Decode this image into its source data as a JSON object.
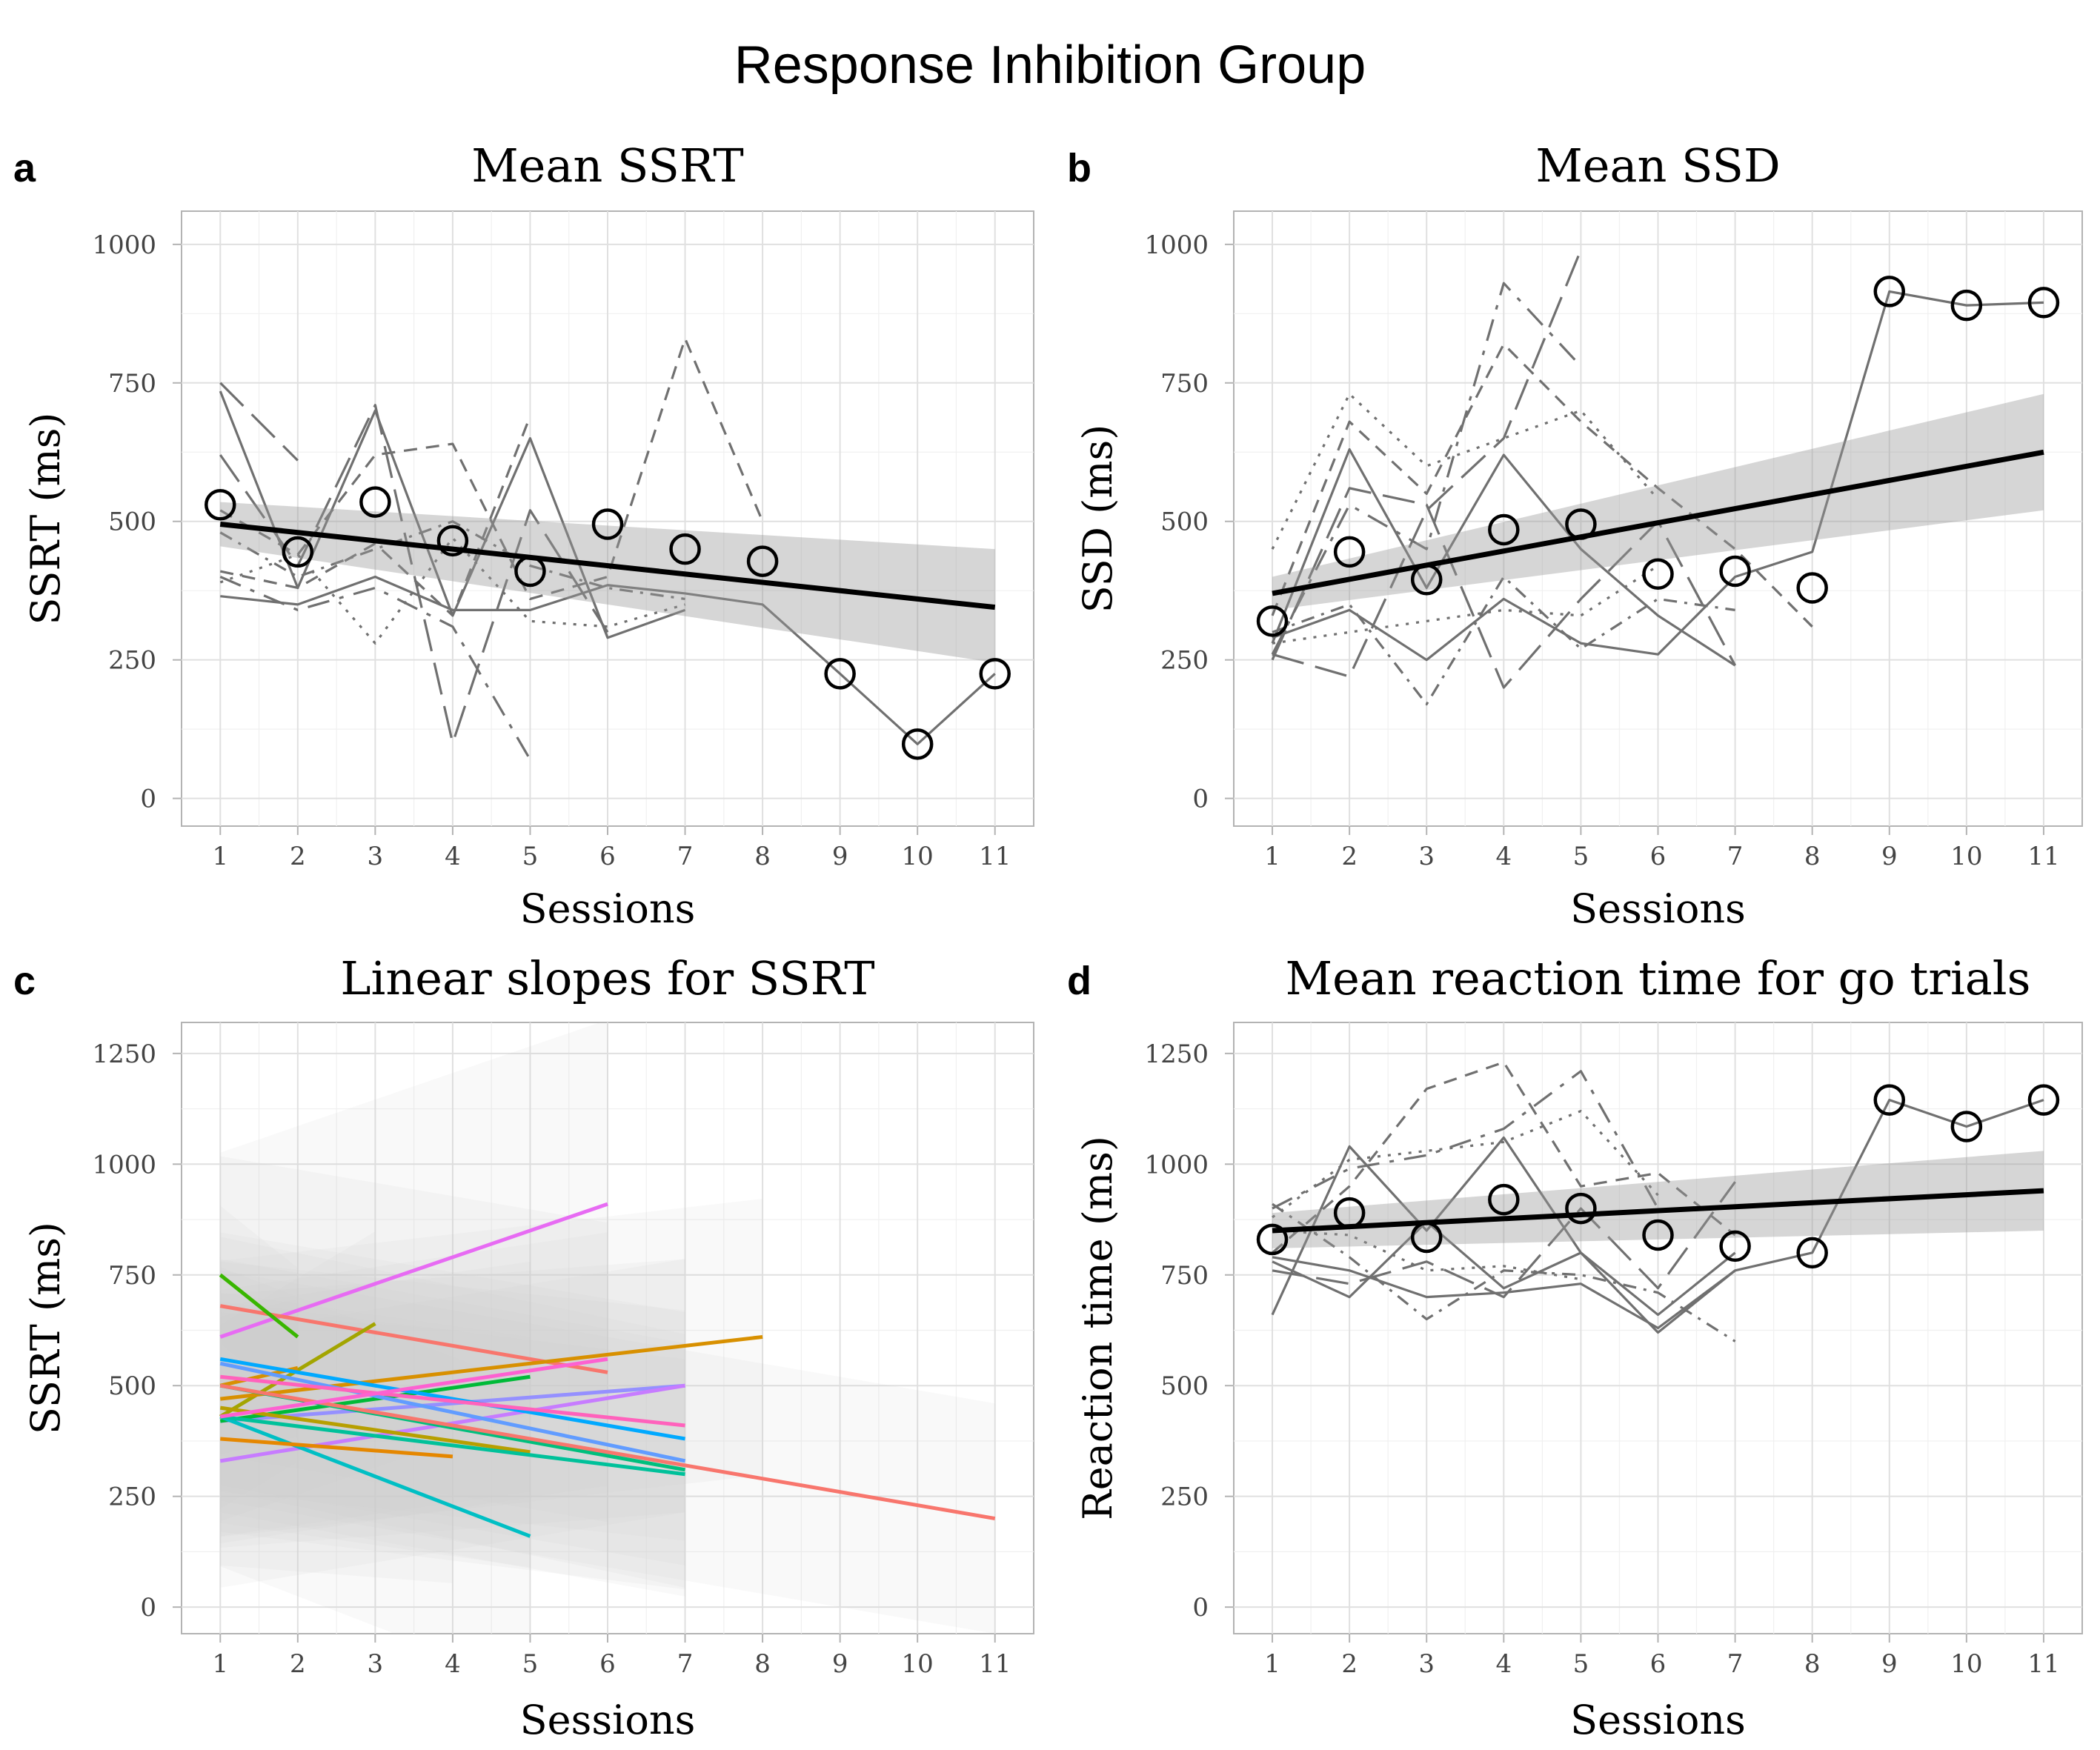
{
  "title": "Response Inhibition Group",
  "chart_data": [
    {
      "id": "a",
      "type": "line",
      "title": "Mean SSRT",
      "xlabel": "Sessions",
      "ylabel": "SSRT (ms)",
      "xlim": [
        0.5,
        11.5
      ],
      "ylim": [
        -50,
        1060
      ],
      "xticks": [
        1,
        2,
        3,
        4,
        5,
        6,
        7,
        8,
        9,
        10,
        11
      ],
      "yticks": [
        0,
        250,
        500,
        750,
        1000
      ],
      "mean_points": {
        "x": [
          1,
          2,
          3,
          4,
          5,
          6,
          7,
          8,
          9,
          10,
          11
        ],
        "y": [
          530,
          445,
          535,
          465,
          410,
          495,
          450,
          428,
          225,
          98,
          225
        ]
      },
      "fit": {
        "x": [
          1,
          11
        ],
        "y": [
          495,
          345
        ],
        "ci_lower": [
          455,
          245
        ],
        "ci_upper": [
          535,
          450
        ]
      },
      "participants": [
        {
          "x": [
            1,
            2
          ],
          "y": [
            750,
            610
          ],
          "dash": "long"
        },
        {
          "x": [
            1,
            2,
            3,
            4,
            5,
            6,
            7
          ],
          "y": [
            735,
            380,
            700,
            330,
            650,
            290,
            340
          ],
          "dash": "solid"
        },
        {
          "x": [
            1,
            2,
            3,
            4,
            5,
            6
          ],
          "y": [
            620,
            420,
            710,
            100,
            520,
            300
          ],
          "dash": "long"
        },
        {
          "x": [
            1,
            2,
            3,
            4,
            5
          ],
          "y": [
            400,
            340,
            380,
            310,
            70
          ],
          "dash": "longdash"
        },
        {
          "x": [
            1,
            2,
            3,
            4,
            5,
            6,
            7,
            8
          ],
          "y": [
            520,
            440,
            620,
            640,
            360,
            400,
            830,
            500
          ],
          "dash": "dashed"
        },
        {
          "x": [
            1,
            2,
            3,
            4,
            5,
            6,
            7
          ],
          "y": [
            390,
            440,
            280,
            470,
            320,
            310,
            350
          ],
          "dash": "dotted"
        },
        {
          "x": [
            1,
            2,
            3,
            4,
            5,
            6,
            7,
            8,
            9,
            10,
            11
          ],
          "y": [
            365,
            350,
            400,
            340,
            340,
            385,
            370,
            350,
            225,
            98,
            225
          ],
          "dash": "solid"
        },
        {
          "x": [
            1,
            2,
            3,
            4,
            5
          ],
          "y": [
            410,
            380,
            460,
            330,
            690
          ],
          "dash": "dashed"
        },
        {
          "x": [
            1,
            2,
            3,
            4,
            5,
            6,
            7
          ],
          "y": [
            480,
            400,
            450,
            500,
            420,
            380,
            360
          ],
          "dash": "dashdot"
        }
      ]
    },
    {
      "id": "b",
      "type": "line",
      "title": "Mean SSD",
      "xlabel": "Sessions",
      "ylabel": "SSD (ms)",
      "xlim": [
        0.5,
        11.5
      ],
      "ylim": [
        -50,
        1060
      ],
      "xticks": [
        1,
        2,
        3,
        4,
        5,
        6,
        7,
        8,
        9,
        10,
        11
      ],
      "yticks": [
        0,
        250,
        500,
        750,
        1000
      ],
      "mean_points": {
        "x": [
          1,
          2,
          3,
          4,
          5,
          6,
          7,
          8,
          9,
          10,
          11
        ],
        "y": [
          320,
          445,
          395,
          485,
          495,
          405,
          410,
          380,
          915,
          890,
          895
        ]
      },
      "fit": {
        "x": [
          1,
          11
        ],
        "y": [
          370,
          625
        ],
        "ci_lower": [
          340,
          520
        ],
        "ci_upper": [
          400,
          730
        ]
      },
      "participants": [
        {
          "x": [
            1,
            2,
            3,
            4,
            5
          ],
          "y": [
            260,
            530,
            450,
            930,
            780
          ],
          "dash": "longdash"
        },
        {
          "x": [
            1,
            2,
            3,
            4,
            5
          ],
          "y": [
            260,
            220,
            520,
            650,
            990
          ],
          "dash": "long"
        },
        {
          "x": [
            1,
            2,
            3,
            4,
            5,
            6,
            7
          ],
          "y": [
            280,
            630,
            380,
            620,
            450,
            330,
            240
          ],
          "dash": "solid"
        },
        {
          "x": [
            1,
            2,
            3,
            4,
            5,
            6
          ],
          "y": [
            450,
            730,
            600,
            650,
            700,
            540
          ],
          "dash": "dotted"
        },
        {
          "x": [
            1,
            2,
            3,
            4,
            5,
            6,
            7,
            8
          ],
          "y": [
            330,
            680,
            550,
            820,
            680,
            560,
            450,
            310
          ],
          "dash": "dashed"
        },
        {
          "x": [
            1,
            2,
            3,
            4,
            5,
            6,
            7
          ],
          "y": [
            300,
            350,
            170,
            400,
            270,
            360,
            340
          ],
          "dash": "dashdot"
        },
        {
          "x": [
            1,
            2,
            3,
            4,
            5,
            6,
            7,
            8,
            9,
            10,
            11
          ],
          "y": [
            290,
            340,
            250,
            360,
            280,
            260,
            400,
            445,
            915,
            890,
            895
          ],
          "dash": "solid"
        },
        {
          "x": [
            1,
            2,
            3,
            4,
            5,
            6,
            7
          ],
          "y": [
            250,
            560,
            530,
            200,
            360,
            500,
            240
          ],
          "dash": "long"
        },
        {
          "x": [
            1,
            2,
            3,
            4,
            5,
            6
          ],
          "y": [
            280,
            300,
            320,
            340,
            330,
            420
          ],
          "dash": "dotted"
        }
      ]
    },
    {
      "id": "c",
      "type": "line",
      "title": "Linear slopes for SSRT",
      "xlabel": "Sessions",
      "ylabel": "SSRT (ms)",
      "xlim": [
        0.5,
        11.5
      ],
      "ylim": [
        -60,
        1320
      ],
      "xticks": [
        1,
        2,
        3,
        4,
        5,
        6,
        7,
        8,
        9,
        10,
        11
      ],
      "yticks": [
        0,
        250,
        500,
        750,
        1000,
        1250
      ],
      "slopes": [
        {
          "x": [
            1,
            6
          ],
          "y": [
            610,
            910
          ],
          "color": "#e76bf3",
          "ci": 320
        },
        {
          "x": [
            1,
            6
          ],
          "y": [
            680,
            530
          ],
          "color": "#f8766d",
          "ci": 260
        },
        {
          "x": [
            1,
            2
          ],
          "y": [
            750,
            610
          ],
          "color": "#39b600",
          "ci": 120
        },
        {
          "x": [
            1,
            3
          ],
          "y": [
            430,
            640
          ],
          "color": "#a3a500",
          "ci": 160
        },
        {
          "x": [
            1,
            2
          ],
          "y": [
            500,
            540
          ],
          "color": "#d89000",
          "ci": 120
        },
        {
          "x": [
            1,
            8
          ],
          "y": [
            470,
            610
          ],
          "color": "#d89000",
          "ci": 240
        },
        {
          "x": [
            1,
            7
          ],
          "y": [
            420,
            500
          ],
          "color": "#9590ff",
          "ci": 220
        },
        {
          "x": [
            1,
            7
          ],
          "y": [
            330,
            500
          ],
          "color": "#c77cff",
          "ci": 220
        },
        {
          "x": [
            1,
            5
          ],
          "y": [
            420,
            520
          ],
          "color": "#00ba38",
          "ci": 200
        },
        {
          "x": [
            1,
            7
          ],
          "y": [
            560,
            380
          ],
          "color": "#00a9ff",
          "ci": 220
        },
        {
          "x": [
            1,
            7
          ],
          "y": [
            550,
            330
          ],
          "color": "#619cff",
          "ci": 220
        },
        {
          "x": [
            1,
            7
          ],
          "y": [
            500,
            310
          ],
          "color": "#00bf7d",
          "ci": 220
        },
        {
          "x": [
            1,
            5
          ],
          "y": [
            430,
            160
          ],
          "color": "#00bfc4",
          "ci": 260
        },
        {
          "x": [
            1,
            4
          ],
          "y": [
            380,
            340
          ],
          "color": "#e58700",
          "ci": 220
        },
        {
          "x": [
            1,
            5
          ],
          "y": [
            450,
            350
          ],
          "color": "#b79f00",
          "ci": 200
        },
        {
          "x": [
            1,
            7
          ],
          "y": [
            430,
            300
          ],
          "color": "#00c19a",
          "ci": 200
        },
        {
          "x": [
            1,
            11
          ],
          "y": [
            500,
            200
          ],
          "color": "#f8766d",
          "ci": 200
        },
        {
          "x": [
            1,
            7
          ],
          "y": [
            520,
            410
          ],
          "color": "#ff62bc",
          "ci": 200
        },
        {
          "x": [
            1,
            6
          ],
          "y": [
            430,
            560
          ],
          "color": "#fd61d1",
          "ci": 220
        }
      ]
    },
    {
      "id": "d",
      "type": "line",
      "title": "Mean reaction time for go trials",
      "xlabel": "Sessions",
      "ylabel": "Reaction time (ms)",
      "xlim": [
        0.5,
        11.5
      ],
      "ylim": [
        -60,
        1320
      ],
      "xticks": [
        1,
        2,
        3,
        4,
        5,
        6,
        7,
        8,
        9,
        10,
        11
      ],
      "yticks": [
        0,
        250,
        500,
        750,
        1000,
        1250
      ],
      "mean_points": {
        "x": [
          1,
          2,
          3,
          4,
          5,
          6,
          7,
          8,
          9,
          10,
          11
        ],
        "y": [
          830,
          890,
          835,
          920,
          900,
          840,
          815,
          800,
          1145,
          1085,
          1145
        ]
      },
      "fit": {
        "x": [
          1,
          11
        ],
        "y": [
          850,
          940
        ],
        "ci_lower": [
          810,
          850
        ],
        "ci_upper": [
          890,
          1030
        ]
      },
      "participants": [
        {
          "x": [
            1,
            2,
            3,
            4,
            5,
            6,
            7
          ],
          "y": [
            660,
            1040,
            850,
            1060,
            800,
            620,
            760
          ],
          "dash": "solid"
        },
        {
          "x": [
            1,
            2,
            3,
            4,
            5,
            6,
            7
          ],
          "y": [
            800,
            950,
            1170,
            1230,
            950,
            980,
            840
          ],
          "dash": "dashed"
        },
        {
          "x": [
            1,
            2,
            3,
            4,
            5,
            6
          ],
          "y": [
            900,
            990,
            1020,
            1080,
            1210,
            900
          ],
          "dash": "longdash"
        },
        {
          "x": [
            1,
            2,
            3,
            4,
            5,
            6,
            7
          ],
          "y": [
            910,
            790,
            650,
            760,
            750,
            710,
            600
          ],
          "dash": "dashdot"
        },
        {
          "x": [
            1,
            2,
            3,
            4,
            5,
            6,
            7
          ],
          "y": [
            780,
            700,
            870,
            720,
            800,
            660,
            800
          ],
          "dash": "solid"
        },
        {
          "x": [
            1,
            2,
            3,
            4,
            5,
            6
          ],
          "y": [
            880,
            1010,
            1030,
            1050,
            1120,
            930
          ],
          "dash": "dotted"
        },
        {
          "x": [
            1,
            2,
            3,
            4,
            5,
            6,
            7,
            8,
            9,
            10,
            11
          ],
          "y": [
            790,
            760,
            700,
            710,
            730,
            630,
            760,
            800,
            1145,
            1085,
            1145
          ],
          "dash": "solid"
        },
        {
          "x": [
            1,
            2,
            3,
            4,
            5,
            6,
            7
          ],
          "y": [
            760,
            730,
            780,
            700,
            900,
            720,
            960
          ],
          "dash": "long"
        },
        {
          "x": [
            1,
            2,
            3,
            4,
            5
          ],
          "y": [
            850,
            840,
            760,
            770,
            740
          ],
          "dash": "dotted"
        }
      ]
    }
  ]
}
